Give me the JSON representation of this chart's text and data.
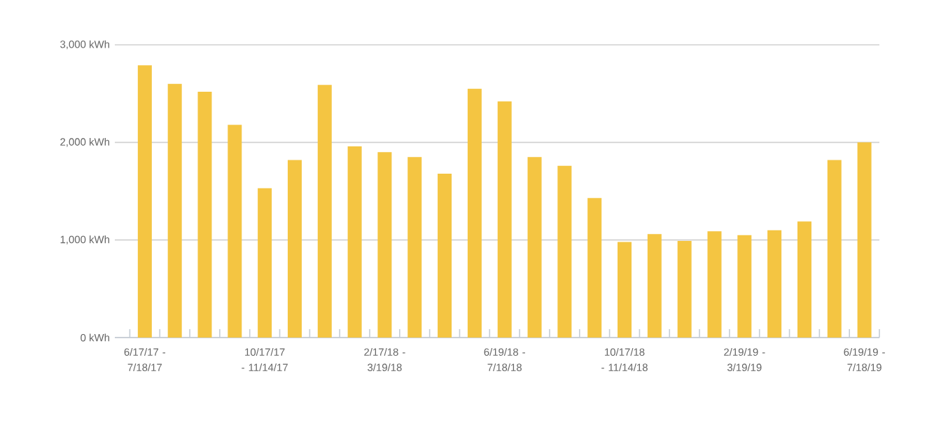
{
  "chart_data": {
    "type": "bar",
    "categories": [
      "6/17/17 - 7/18/17",
      null,
      null,
      null,
      "10/17/17 - 11/14/17",
      null,
      null,
      null,
      "2/17/18 - 3/19/18",
      null,
      null,
      null,
      "6/19/18 - 7/18/18",
      null,
      null,
      null,
      "10/17/18 - 11/14/18",
      null,
      null,
      null,
      "2/19/19 - 3/19/19",
      null,
      null,
      null,
      "6/19/19 - 7/18/19"
    ],
    "values": [
      2790,
      2600,
      2520,
      2180,
      1530,
      1820,
      2590,
      1960,
      1900,
      1850,
      1680,
      2550,
      2420,
      1850,
      1760,
      1430,
      980,
      1060,
      990,
      1090,
      1050,
      1100,
      1190,
      1820,
      2000
    ],
    "color": "#f4c542",
    "ylim": [
      0,
      3000
    ],
    "yticks": [
      {
        "value": 0,
        "label": "0 kWh"
      },
      {
        "value": 1000,
        "label": "1,000 kWh"
      },
      {
        "value": 2000,
        "label": "2,000 kWh"
      },
      {
        "value": 3000,
        "label": "3,000 kWh"
      }
    ],
    "grid": "y"
  }
}
